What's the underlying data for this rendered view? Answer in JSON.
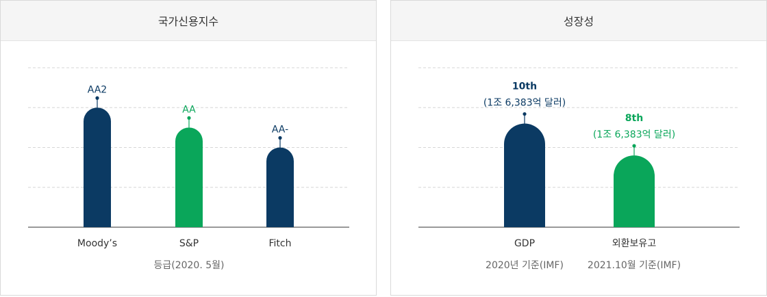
{
  "chart_data": [
    {
      "type": "bar",
      "title": "국가신용지수",
      "categories": [
        "Moody’s",
        "S&P",
        "Fitch"
      ],
      "ordinal_values": [
        3,
        2.5,
        2
      ],
      "bar_labels": [
        "AA2",
        "AA",
        "AA-"
      ],
      "bar_sublabels": [
        "",
        "",
        ""
      ],
      "bar_colors": [
        "#0b3a63",
        "#0aa65a",
        "#0b3a63"
      ],
      "label_colors": [
        "#0b3a63",
        "#0aa65a",
        "#0b3a63"
      ],
      "ylim": [
        0,
        4
      ],
      "grid": true,
      "footnotes": [
        "등급(2020. 5월)"
      ]
    },
    {
      "type": "bar",
      "title": "성장성",
      "categories": [
        "GDP",
        "외환보유고"
      ],
      "ordinal_values": [
        2.6,
        1.8
      ],
      "bar_labels": [
        "10th",
        "8th"
      ],
      "bar_sublabels": [
        "(1조 6,383억 달러)",
        "(1조 6,383억 달러)"
      ],
      "bar_colors": [
        "#0b3a63",
        "#0aa65a"
      ],
      "label_colors": [
        "#0b3a63",
        "#0aa65a"
      ],
      "ylim": [
        0,
        4
      ],
      "grid": true,
      "footnotes": [
        "2020년 기준(IMF)",
        "2021.10월 기준(IMF)"
      ]
    }
  ]
}
